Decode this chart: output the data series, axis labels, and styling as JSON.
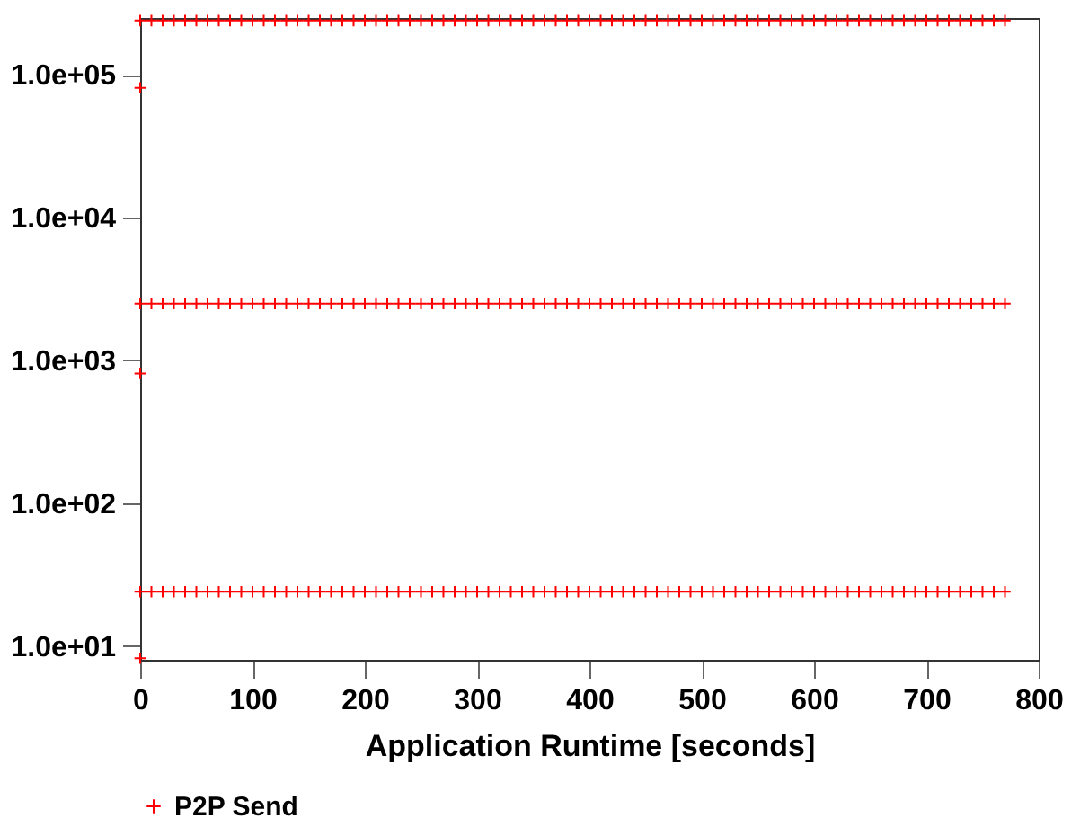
{
  "chart_data": {
    "type": "scatter",
    "xlabel": "Application Runtime [seconds]",
    "xlim": [
      0,
      800
    ],
    "xticks": [
      0,
      100,
      200,
      300,
      400,
      500,
      600,
      700,
      800
    ],
    "ylim": [
      8,
      250000
    ],
    "log": "y",
    "yticks": [
      {
        "value": 10,
        "label": "1.0e+01"
      },
      {
        "value": 100,
        "label": "1.0e+02"
      },
      {
        "value": 1000,
        "label": "1.0e+03"
      },
      {
        "value": 10000,
        "label": "1.0e+04"
      },
      {
        "value": 100000,
        "label": "1.0e+05"
      }
    ],
    "grid": false,
    "legend": "bottom",
    "marker": "cross",
    "series": [
      {
        "name": "P2P Send",
        "color": "#ff0000",
        "x": [
          0,
          10,
          20,
          30,
          40,
          50,
          60,
          70,
          80,
          90,
          100,
          110,
          120,
          130,
          140,
          150,
          160,
          170,
          180,
          190,
          200,
          210,
          220,
          230,
          240,
          250,
          260,
          270,
          280,
          290,
          300,
          310,
          320,
          330,
          340,
          350,
          360,
          370,
          380,
          390,
          400,
          410,
          420,
          430,
          440,
          450,
          460,
          470,
          480,
          490,
          500,
          510,
          520,
          530,
          540,
          550,
          560,
          570,
          580,
          590,
          600,
          610,
          620,
          630,
          640,
          650,
          660,
          670,
          680,
          690,
          700,
          710,
          720,
          730,
          740,
          750,
          760,
          770,
          0,
          10,
          20,
          30,
          40,
          50,
          60,
          70,
          80,
          90,
          100,
          110,
          120,
          130,
          140,
          150,
          160,
          170,
          180,
          190,
          200,
          210,
          220,
          230,
          240,
          250,
          260,
          270,
          280,
          290,
          300,
          310,
          320,
          330,
          340,
          350,
          360,
          370,
          380,
          390,
          400,
          410,
          420,
          430,
          440,
          450,
          460,
          470,
          480,
          490,
          500,
          510,
          520,
          530,
          540,
          550,
          560,
          570,
          580,
          590,
          600,
          610,
          620,
          630,
          640,
          650,
          660,
          670,
          680,
          690,
          700,
          710,
          720,
          730,
          740,
          750,
          760,
          770,
          0,
          10,
          20,
          30,
          40,
          50,
          60,
          70,
          80,
          90,
          100,
          110,
          120,
          130,
          140,
          150,
          160,
          170,
          180,
          190,
          200,
          210,
          220,
          230,
          240,
          250,
          260,
          270,
          280,
          290,
          300,
          310,
          320,
          330,
          340,
          350,
          360,
          370,
          380,
          390,
          400,
          410,
          420,
          430,
          440,
          450,
          460,
          470,
          480,
          490,
          500,
          510,
          520,
          530,
          540,
          550,
          560,
          570,
          580,
          590,
          600,
          610,
          620,
          630,
          640,
          650,
          660,
          670,
          680,
          690,
          700,
          710,
          720,
          730,
          740,
          750,
          760,
          770,
          0,
          0,
          0
        ],
        "values": [
          240000,
          240000,
          240000,
          240000,
          240000,
          240000,
          240000,
          240000,
          240000,
          240000,
          240000,
          240000,
          240000,
          240000,
          240000,
          240000,
          240000,
          240000,
          240000,
          240000,
          240000,
          240000,
          240000,
          240000,
          240000,
          240000,
          240000,
          240000,
          240000,
          240000,
          240000,
          240000,
          240000,
          240000,
          240000,
          240000,
          240000,
          240000,
          240000,
          240000,
          240000,
          240000,
          240000,
          240000,
          240000,
          240000,
          240000,
          240000,
          240000,
          240000,
          240000,
          240000,
          240000,
          240000,
          240000,
          240000,
          240000,
          240000,
          240000,
          240000,
          240000,
          240000,
          240000,
          240000,
          240000,
          240000,
          240000,
          240000,
          240000,
          240000,
          240000,
          240000,
          240000,
          240000,
          240000,
          240000,
          240000,
          240000,
          2500,
          2500,
          2500,
          2500,
          2500,
          2500,
          2500,
          2500,
          2500,
          2500,
          2500,
          2500,
          2500,
          2500,
          2500,
          2500,
          2500,
          2500,
          2500,
          2500,
          2500,
          2500,
          2500,
          2500,
          2500,
          2500,
          2500,
          2500,
          2500,
          2500,
          2500,
          2500,
          2500,
          2500,
          2500,
          2500,
          2500,
          2500,
          2500,
          2500,
          2500,
          2500,
          2500,
          2500,
          2500,
          2500,
          2500,
          2500,
          2500,
          2500,
          2500,
          2500,
          2500,
          2500,
          2500,
          2500,
          2500,
          2500,
          2500,
          2500,
          2500,
          2500,
          2500,
          2500,
          2500,
          2500,
          2500,
          2500,
          2500,
          2500,
          2500,
          2500,
          2500,
          2500,
          2500,
          2500,
          2500,
          2500,
          24,
          24,
          24,
          24,
          24,
          24,
          24,
          24,
          24,
          24,
          24,
          24,
          24,
          24,
          24,
          24,
          24,
          24,
          24,
          24,
          24,
          24,
          24,
          24,
          24,
          24,
          24,
          24,
          24,
          24,
          24,
          24,
          24,
          24,
          24,
          24,
          24,
          24,
          24,
          24,
          24,
          24,
          24,
          24,
          24,
          24,
          24,
          24,
          24,
          24,
          24,
          24,
          24,
          24,
          24,
          24,
          24,
          24,
          24,
          24,
          24,
          24,
          24,
          24,
          24,
          24,
          24,
          24,
          24,
          24,
          24,
          24,
          24,
          24,
          24,
          24,
          24,
          24,
          81000,
          810,
          8.2
        ]
      }
    ]
  }
}
